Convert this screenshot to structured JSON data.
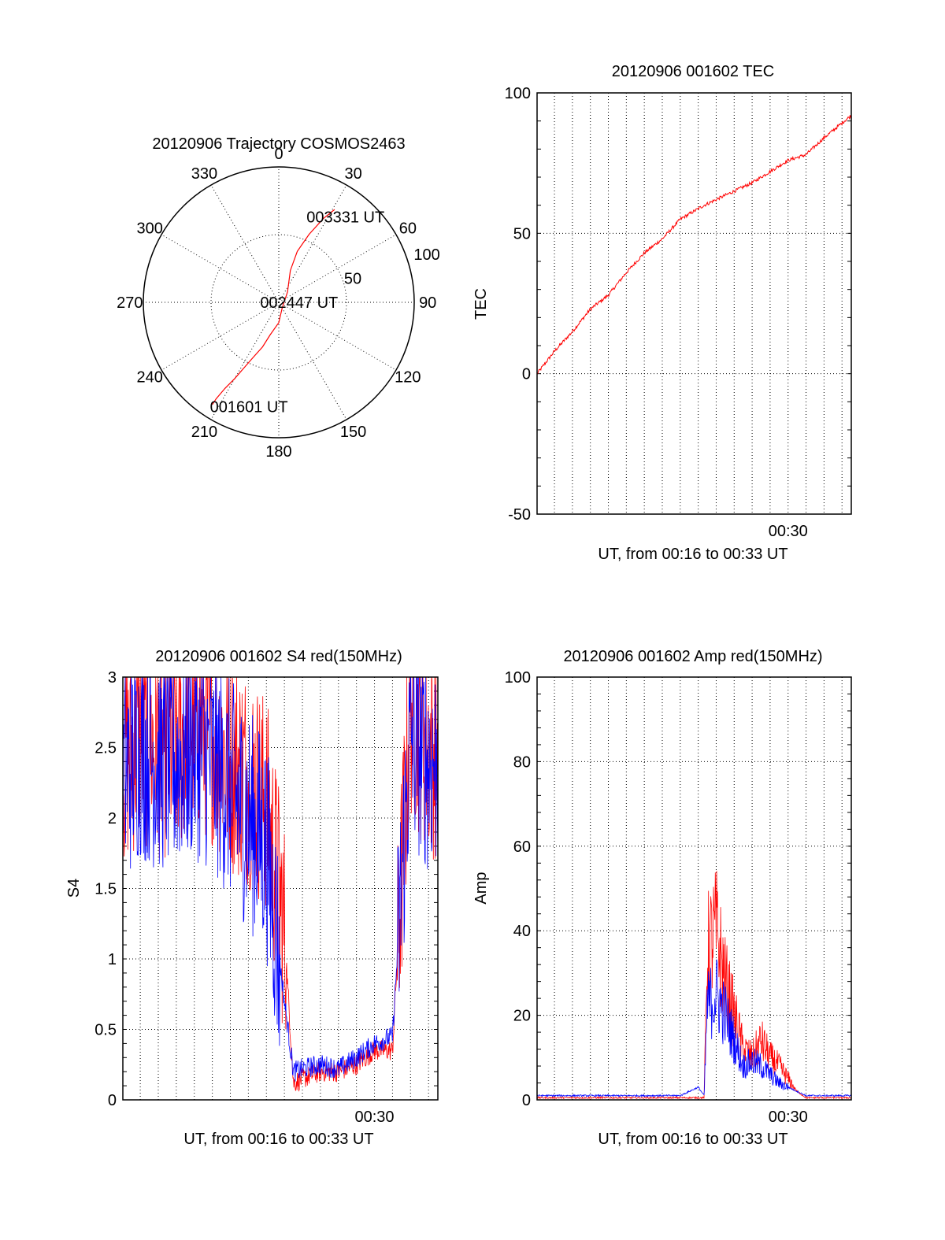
{
  "colors": {
    "red": "#ff0000",
    "blue": "#0000ff",
    "axis": "#000000",
    "grid": "#000000"
  },
  "chart_data": [
    {
      "type": "polar",
      "title": "20120906 Trajectory COSMOS2463",
      "azimuth_labels": [
        "0",
        "30",
        "60",
        "90",
        "120",
        "150",
        "180",
        "210",
        "240",
        "270",
        "300",
        "330"
      ],
      "radial_labels": [
        "50",
        "100"
      ],
      "rlim": [
        0,
        100
      ],
      "grid": true,
      "series": [
        {
          "color": "red",
          "points": [
            {
              "az": 213,
              "r": 90
            },
            {
              "az": 213,
              "r": 85
            },
            {
              "az": 212,
              "r": 75
            },
            {
              "az": 210,
              "r": 65
            },
            {
              "az": 208,
              "r": 55
            },
            {
              "az": 205,
              "r": 45
            },
            {
              "az": 200,
              "r": 35
            },
            {
              "az": 195,
              "r": 25
            },
            {
              "az": 180,
              "r": 15
            },
            {
              "az": 150,
              "r": 5
            },
            {
              "az": 40,
              "r": 10
            },
            {
              "az": 20,
              "r": 25
            },
            {
              "az": 20,
              "r": 40
            },
            {
              "az": 24,
              "r": 55
            },
            {
              "az": 28,
              "r": 70
            },
            {
              "az": 31,
              "r": 80
            }
          ]
        }
      ],
      "annotations": [
        {
          "text": "001601 UT",
          "az": 196,
          "r": 80
        },
        {
          "text": "002447 UT",
          "az": 90,
          "r": 15
        },
        {
          "text": "003331 UT",
          "az": 38,
          "r": 80
        }
      ]
    },
    {
      "type": "line",
      "title": "20120906 001602 TEC",
      "xlabel": "UT, from 00:16 to 00:33 UT",
      "ylabel": "TEC",
      "xlim": [
        "00:16:02",
        "00:33:31"
      ],
      "ylim": [
        -50,
        100
      ],
      "yticks": [
        -50,
        0,
        50,
        100
      ],
      "xtick_labels": [
        {
          "t": "00:30",
          "label": "00:30"
        }
      ],
      "grid": true,
      "series": [
        {
          "color": "red",
          "x": [
            "00:16:02",
            "00:17:00",
            "00:18:00",
            "00:19:00",
            "00:20:00",
            "00:21:00",
            "00:22:00",
            "00:23:00",
            "00:24:00",
            "00:25:20",
            "00:26:00",
            "00:27:00",
            "00:28:00",
            "00:29:00",
            "00:30:00",
            "00:31:00",
            "00:32:00",
            "00:33:31"
          ],
          "y": [
            0,
            8,
            15,
            23,
            28,
            36,
            43,
            48,
            55,
            60,
            62,
            65,
            68,
            72,
            76,
            78,
            84,
            92
          ]
        }
      ]
    },
    {
      "type": "line",
      "title": "20120906 001602 S4 red(150MHz)",
      "xlabel": "UT, from 00:16 to 00:33 UT",
      "ylabel": "S4",
      "xlim": [
        "00:16:02",
        "00:33:31"
      ],
      "ylim": [
        0,
        3
      ],
      "yticks": [
        0,
        0.5,
        1,
        1.5,
        2,
        2.5,
        3
      ],
      "xtick_labels": [
        {
          "t": "00:30",
          "label": "00:30"
        }
      ],
      "grid": true,
      "series": [
        {
          "color": "red",
          "x": [
            "00:16:02",
            "00:17:00",
            "00:18:00",
            "00:19:00",
            "00:20:00",
            "00:21:00",
            "00:22:00",
            "00:23:00",
            "00:24:00",
            "00:25:00",
            "00:25:30",
            "00:26:00",
            "00:27:00",
            "00:28:00",
            "00:29:00",
            "00:30:00",
            "00:31:00",
            "00:32:00",
            "00:33:00"
          ],
          "y": [
            2.4,
            2.6,
            2.5,
            2.5,
            2.7,
            2.6,
            2.4,
            2.3,
            2.1,
            1.2,
            0.12,
            0.15,
            0.2,
            0.2,
            0.25,
            0.35,
            0.35,
            2.8,
            2.5
          ]
        },
        {
          "color": "blue",
          "x": [
            "00:16:02",
            "00:17:00",
            "00:18:00",
            "00:19:00",
            "00:20:00",
            "00:21:00",
            "00:22:00",
            "00:23:00",
            "00:24:00",
            "00:25:00",
            "00:25:30",
            "00:26:00",
            "00:27:00",
            "00:28:00",
            "00:29:00",
            "00:30:00",
            "00:31:00",
            "00:32:00",
            "00:33:00"
          ],
          "y": [
            2.3,
            2.5,
            2.4,
            2.4,
            2.5,
            2.4,
            2.2,
            2.0,
            1.8,
            0.7,
            0.2,
            0.22,
            0.25,
            0.22,
            0.3,
            0.4,
            0.45,
            2.6,
            2.4
          ]
        }
      ]
    },
    {
      "type": "line",
      "title": "20120906 001602 Amp red(150MHz)",
      "xlabel": "UT, from 00:16 to 00:33 UT",
      "ylabel": "Amp",
      "xlim": [
        "00:16:02",
        "00:33:31"
      ],
      "ylim": [
        0,
        100
      ],
      "yticks": [
        0,
        20,
        40,
        60,
        80,
        100
      ],
      "xtick_labels": [
        {
          "t": "00:30",
          "label": "00:30"
        }
      ],
      "grid": true,
      "series": [
        {
          "color": "red",
          "x": [
            "00:16:02",
            "00:20:00",
            "00:24:00",
            "00:25:20",
            "00:25:30",
            "00:26:00",
            "00:26:30",
            "00:27:00",
            "00:27:30",
            "00:28:00",
            "00:28:30",
            "00:29:00",
            "00:29:30",
            "00:30:00",
            "00:30:30",
            "00:31:00",
            "00:33:31"
          ],
          "y": [
            0.5,
            0.5,
            0.5,
            0.5,
            35,
            40,
            28,
            20,
            12,
            10,
            14,
            10,
            8,
            5,
            2,
            0.5,
            0.5
          ]
        },
        {
          "color": "blue",
          "x": [
            "00:16:02",
            "00:20:00",
            "00:24:00",
            "00:25:00",
            "00:25:20",
            "00:25:30",
            "00:26:00",
            "00:26:30",
            "00:27:00",
            "00:27:30",
            "00:28:00",
            "00:28:30",
            "00:29:00",
            "00:29:30",
            "00:30:00",
            "00:30:30",
            "00:31:00",
            "00:33:31"
          ],
          "y": [
            1,
            1,
            1,
            3,
            1,
            22,
            25,
            20,
            14,
            8,
            9,
            8,
            6,
            4,
            3,
            2,
            1,
            1
          ]
        }
      ]
    }
  ]
}
